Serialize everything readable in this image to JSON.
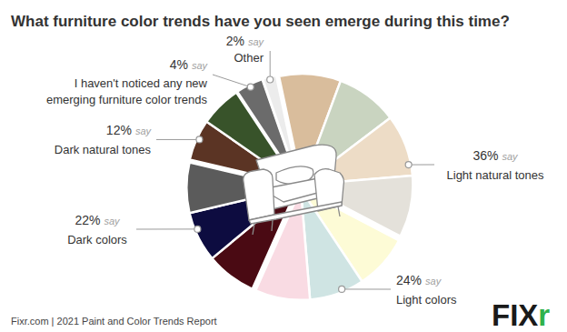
{
  "chart_data": {
    "type": "pie",
    "title": "What furniture color trends have you seen emerge during this time?",
    "categories": [
      "Light natural tones",
      "Light colors",
      "Dark colors",
      "Dark natural tones",
      "I haven't noticed any new emerging furniture color trends",
      "Other"
    ],
    "values": [
      36,
      24,
      22,
      12,
      4,
      2
    ],
    "value_labels": [
      "36%",
      "24%",
      "22%",
      "12%",
      "4%",
      "2%"
    ],
    "data_labels": true,
    "annotation": "say",
    "source": "Fixr.com | 2021 Paint and Color Trends Report",
    "logo": "FIXr"
  }
}
